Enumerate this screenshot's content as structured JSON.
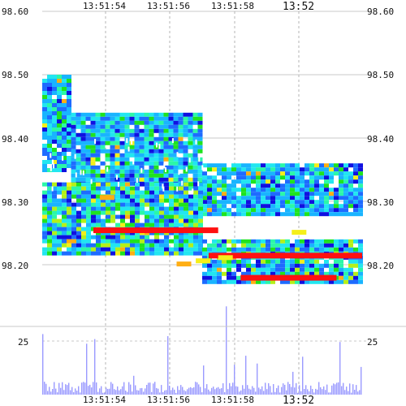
{
  "chart_data": {
    "type": "heatmap",
    "title": "",
    "xlabel": "",
    "ylabel": "",
    "x_ticks": [
      "13:51:54",
      "13:51:56",
      "13:51:58",
      "13:52"
    ],
    "y_ticks": [
      "98.60",
      "98.50",
      "98.40",
      "98.30",
      "98.20"
    ],
    "ylim": [
      98.155,
      98.6
    ],
    "volume_ticks": [
      "25"
    ],
    "volume_ylim": [
      0,
      40
    ],
    "grid": true,
    "colors": {
      "deep_blue": "#1010e0",
      "blue": "#1e6bff",
      "sky": "#19b4ff",
      "cyan": "#22e6f0",
      "mint": "#2bf7a8",
      "green": "#1fe31f",
      "lime": "#b4f019",
      "yellow": "#f5ef1a",
      "orange": "#ffae14",
      "red": "#ff1010",
      "volume": "#9a9aff"
    },
    "bands": [
      {
        "name": "ask-early",
        "t_start": 0.0,
        "t_end": 0.09,
        "p_low": 98.35,
        "p_high": 98.5
      },
      {
        "name": "ask-mid",
        "t_start": 0.09,
        "t_end": 0.5,
        "p_low": 98.33,
        "p_high": 98.44
      },
      {
        "name": "ask-late",
        "t_start": 0.5,
        "t_end": 1.0,
        "p_low": 98.28,
        "p_high": 98.36
      },
      {
        "name": "bid-early",
        "t_start": 0.0,
        "t_end": 0.5,
        "p_low": 98.22,
        "p_high": 98.33
      },
      {
        "name": "bid-late",
        "t_start": 0.5,
        "t_end": 1.0,
        "p_low": 98.17,
        "p_high": 98.24
      }
    ],
    "red_levels": [
      {
        "t_start": 0.16,
        "t_end": 0.55,
        "price": 98.255
      },
      {
        "t_start": 0.52,
        "t_end": 1.0,
        "price": 98.215
      },
      {
        "t_start": 0.62,
        "t_end": 0.92,
        "price": 98.18
      }
    ]
  }
}
